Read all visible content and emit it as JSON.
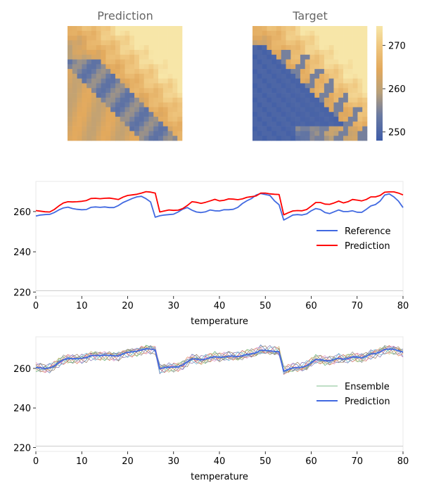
{
  "chart_data": [
    {
      "type": "heatmap",
      "title": "Prediction",
      "grid_size": 24,
      "colormap": {
        "low": "#3e5ca8",
        "mid": "#8f8b88",
        "high": "#f7e3a5",
        "mid_accent": "#e5aa5a"
      }
    },
    {
      "type": "heatmap",
      "title": "Target",
      "grid_size": 24,
      "colorbar": {
        "ticks": [
          250,
          260,
          270
        ],
        "range": [
          248,
          274.5
        ]
      }
    },
    {
      "type": "line",
      "xlabel": "temperature",
      "ylabel": "",
      "xlim": [
        0,
        80
      ],
      "ylim": [
        218,
        275
      ],
      "xticks": [
        0,
        10,
        20,
        30,
        40,
        50,
        60,
        70,
        80
      ],
      "yticks": [
        220,
        240,
        260
      ],
      "legend_position": "right",
      "series": [
        {
          "name": "Reference",
          "color": "#4169e1",
          "x": [
            0,
            1,
            2,
            3,
            4,
            5,
            6,
            7,
            8,
            9,
            10,
            11,
            12,
            13,
            14,
            15,
            16,
            17,
            18,
            19,
            20,
            21,
            22,
            23,
            24,
            25,
            26,
            27,
            28,
            29,
            30,
            31,
            32,
            33,
            34,
            35,
            36,
            37,
            38,
            39,
            40,
            41,
            42,
            43,
            44,
            45,
            46,
            47,
            48,
            49,
            50,
            51,
            52,
            53,
            54,
            55,
            56,
            57,
            58,
            59,
            60,
            61,
            62,
            63,
            64,
            65,
            66,
            67,
            68,
            69,
            70,
            71,
            72,
            73,
            74,
            75,
            76,
            77,
            78,
            79,
            80
          ],
          "values": [
            257.8,
            258.3,
            258.5,
            258.6,
            259.5,
            260.8,
            261.8,
            262.2,
            261.5,
            261.1,
            260.9,
            261.0,
            262.1,
            262.3,
            262.1,
            262.3,
            262.0,
            262.0,
            263.0,
            264.5,
            265.5,
            266.5,
            267.3,
            267.6,
            266.4,
            264.8,
            257.2,
            257.9,
            258.3,
            258.5,
            258.7,
            259.8,
            261.2,
            262.0,
            260.7,
            259.8,
            259.5,
            259.9,
            260.8,
            260.4,
            260.3,
            260.9,
            260.9,
            261.1,
            262.1,
            264.0,
            265.4,
            266.5,
            268.2,
            269.0,
            268.5,
            268.0,
            265.3,
            263.4,
            255.8,
            257.0,
            258.3,
            258.5,
            258.3,
            258.8,
            260.4,
            261.5,
            261.0,
            259.5,
            259.0,
            259.9,
            260.8,
            260.0,
            260.0,
            260.4,
            259.7,
            259.6,
            261.1,
            262.8,
            263.5,
            265.2,
            268.2,
            268.8,
            267.3,
            265.2,
            262.0
          ]
        },
        {
          "name": "Prediction",
          "color": "#ff0000",
          "x": [
            0,
            1,
            2,
            3,
            4,
            5,
            6,
            7,
            8,
            9,
            10,
            11,
            12,
            13,
            14,
            15,
            16,
            17,
            18,
            19,
            20,
            21,
            22,
            23,
            24,
            25,
            26,
            27,
            28,
            29,
            30,
            31,
            32,
            33,
            34,
            35,
            36,
            37,
            38,
            39,
            40,
            41,
            42,
            43,
            44,
            45,
            46,
            47,
            48,
            49,
            50,
            51,
            52,
            53,
            54,
            55,
            56,
            57,
            58,
            59,
            60,
            61,
            62,
            63,
            64,
            65,
            66,
            67,
            68,
            69,
            70,
            71,
            72,
            73,
            74,
            75,
            76,
            77,
            78,
            79,
            80
          ],
          "values": [
            260.5,
            260.2,
            259.9,
            259.8,
            261.0,
            262.8,
            264.3,
            264.9,
            264.8,
            264.9,
            265.1,
            265.5,
            266.5,
            266.6,
            266.4,
            266.6,
            266.7,
            266.4,
            266.0,
            267.2,
            268.0,
            268.3,
            268.6,
            269.2,
            269.9,
            269.7,
            269.2,
            259.8,
            260.3,
            260.8,
            260.6,
            260.7,
            261.5,
            263.0,
            264.9,
            264.6,
            264.1,
            264.6,
            265.3,
            266.1,
            265.3,
            265.6,
            266.3,
            266.2,
            265.9,
            266.3,
            267.1,
            267.4,
            267.8,
            269.2,
            269.2,
            268.8,
            268.6,
            268.5,
            258.4,
            259.4,
            260.3,
            260.5,
            260.4,
            261.0,
            262.7,
            264.5,
            264.5,
            263.7,
            263.6,
            264.3,
            265.2,
            264.3,
            264.9,
            266.0,
            265.7,
            265.3,
            266.0,
            267.3,
            267.3,
            268.0,
            269.6,
            269.8,
            269.8,
            269.2,
            268.3
          ]
        }
      ]
    },
    {
      "type": "line",
      "xlabel": "temperature",
      "ylabel": "",
      "xlim": [
        0,
        80
      ],
      "ylim": [
        218,
        276
      ],
      "xticks": [
        0,
        10,
        20,
        30,
        40,
        50,
        60,
        70,
        80
      ],
      "yticks": [
        220,
        240,
        260
      ],
      "legend_position": "right",
      "ensemble": {
        "name": "Ensemble",
        "members": 10,
        "colors": [
          "#4c72b0",
          "#dd8452",
          "#55a868",
          "#c44e52",
          "#8172b3",
          "#937860",
          "#da8bc3",
          "#8c8c8c",
          "#ccb974",
          "#64b5cd"
        ]
      },
      "series": [
        {
          "name": "Prediction",
          "color": "#4169e1",
          "x": [
            0,
            1,
            2,
            3,
            4,
            5,
            6,
            7,
            8,
            9,
            10,
            11,
            12,
            13,
            14,
            15,
            16,
            17,
            18,
            19,
            20,
            21,
            22,
            23,
            24,
            25,
            26,
            27,
            28,
            29,
            30,
            31,
            32,
            33,
            34,
            35,
            36,
            37,
            38,
            39,
            40,
            41,
            42,
            43,
            44,
            45,
            46,
            47,
            48,
            49,
            50,
            51,
            52,
            53,
            54,
            55,
            56,
            57,
            58,
            59,
            60,
            61,
            62,
            63,
            64,
            65,
            66,
            67,
            68,
            69,
            70,
            71,
            72,
            73,
            74,
            75,
            76,
            77,
            78,
            79,
            80
          ],
          "values": [
            260.5,
            260.3,
            260.0,
            260.2,
            261.2,
            262.9,
            264.4,
            265.0,
            264.9,
            265.0,
            265.1,
            265.5,
            266.4,
            266.6,
            266.5,
            266.6,
            266.6,
            266.4,
            266.3,
            267.4,
            268.1,
            268.4,
            268.7,
            269.3,
            269.9,
            269.8,
            269.3,
            259.8,
            260.4,
            260.7,
            260.6,
            260.8,
            261.7,
            263.3,
            264.9,
            264.7,
            264.3,
            264.8,
            265.4,
            266.0,
            265.5,
            265.7,
            266.2,
            266.2,
            266.0,
            266.4,
            267.1,
            267.4,
            267.9,
            269.2,
            269.1,
            268.9,
            268.6,
            268.4,
            258.6,
            259.5,
            260.3,
            260.5,
            260.6,
            261.3,
            262.9,
            264.5,
            264.4,
            263.9,
            263.8,
            264.5,
            265.2,
            264.6,
            265.0,
            265.9,
            265.6,
            265.4,
            266.2,
            267.3,
            267.5,
            268.3,
            269.6,
            269.8,
            269.6,
            269.0,
            268.2
          ]
        }
      ]
    }
  ]
}
